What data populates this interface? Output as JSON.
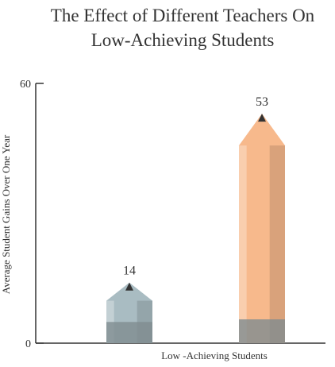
{
  "chart_data": {
    "type": "bar",
    "title": "The Effect of Different Teachers On Low-Achieving Students",
    "y_label": "Average Student Gains Over One Year",
    "x_label": "Low -Achieving Students",
    "categories": [
      null,
      null
    ],
    "values": [
      14,
      53
    ],
    "colors": [
      "#a9bcc2",
      "#f7b98c"
    ],
    "ylim": [
      0,
      60
    ],
    "yticks": [
      0,
      60
    ]
  }
}
